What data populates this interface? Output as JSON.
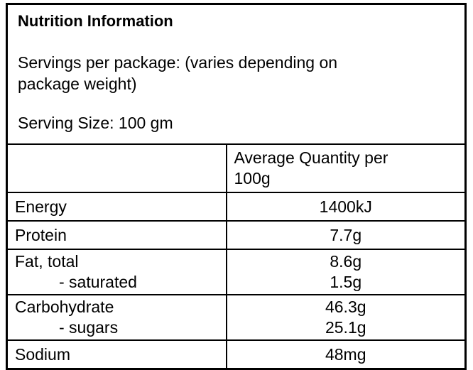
{
  "label": {
    "title": "Nutrition Information",
    "servings_per_package": "Servings per package: (varies depending on\npackage weight)",
    "serving_size": "Serving Size: 100 gm"
  },
  "table": {
    "quantity_header": "Average Quantity per 100g",
    "rows": [
      {
        "nutrient": "Energy",
        "value": "1400kJ"
      },
      {
        "nutrient": "Protein",
        "value": "7.7g"
      },
      {
        "nutrient": "Fat, total",
        "value": "8.6g",
        "sub_nutrient": "- saturated",
        "sub_value": "1.5g"
      },
      {
        "nutrient": "Carbohydrate",
        "value": "46.3g",
        "sub_nutrient": "- sugars",
        "sub_value": "25.1g"
      },
      {
        "nutrient": "Sodium",
        "value": "48mg"
      }
    ]
  },
  "colors": {
    "background": "#ffffff",
    "text": "#000000",
    "border": "#000000"
  }
}
